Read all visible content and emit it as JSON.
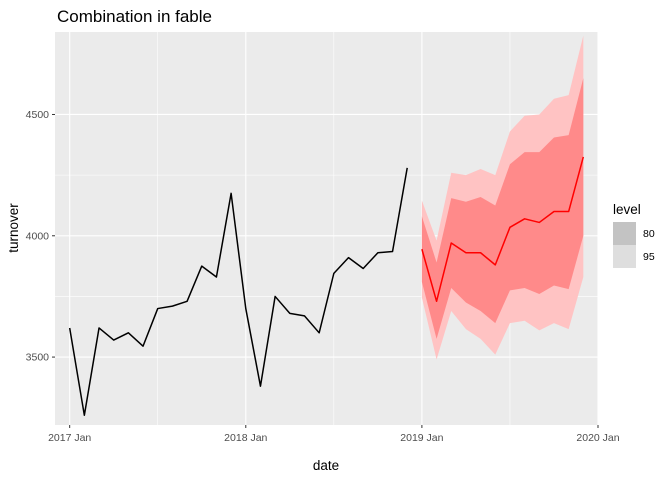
{
  "chart_data": {
    "type": "line",
    "title": "Combination in fable",
    "xlabel": "date",
    "ylabel": "turnover",
    "x_ticks": [
      "2017 Jan",
      "2018 Jan",
      "2019 Jan",
      "2020 Jan"
    ],
    "y_ticks": [
      3500,
      4000,
      4500
    ],
    "ylim": [
      3220,
      4840
    ],
    "xlim": [
      "2016-12",
      "2020-01"
    ],
    "grid": true,
    "legend": {
      "title": "level",
      "placement": "right",
      "entries": [
        {
          "label": "80",
          "color": "#c3c3c3"
        },
        {
          "label": "95",
          "color": "#dedede"
        }
      ]
    },
    "colors": {
      "history": "#000000",
      "forecast": "#ff0000",
      "band80": "#ff8a8a",
      "band95": "#ffc3c3",
      "panel": "#ebebeb",
      "grid": "#ffffff"
    },
    "history": {
      "x": [
        "2017-01",
        "2017-02",
        "2017-03",
        "2017-04",
        "2017-05",
        "2017-06",
        "2017-07",
        "2017-08",
        "2017-09",
        "2017-10",
        "2017-11",
        "2017-12",
        "2018-01",
        "2018-02",
        "2018-03",
        "2018-04",
        "2018-05",
        "2018-06",
        "2018-07",
        "2018-08",
        "2018-09",
        "2018-10",
        "2018-11",
        "2018-12"
      ],
      "y": [
        3620,
        3260,
        3620,
        3570,
        3600,
        3545,
        3700,
        3710,
        3730,
        3875,
        3830,
        4175,
        3700,
        3380,
        3750,
        3680,
        3670,
        3600,
        3845,
        3910,
        3865,
        3930,
        3935,
        4280
      ]
    },
    "forecast": {
      "x": [
        "2019-01",
        "2019-02",
        "2019-03",
        "2019-04",
        "2019-05",
        "2019-06",
        "2019-07",
        "2019-08",
        "2019-09",
        "2019-10",
        "2019-11",
        "2019-12"
      ],
      "y": [
        3945,
        3730,
        3970,
        3930,
        3930,
        3880,
        4035,
        4070,
        4055,
        4100,
        4100,
        4325
      ],
      "lo80": [
        3810,
        3575,
        3785,
        3725,
        3690,
        3640,
        3775,
        3785,
        3760,
        3795,
        3780,
        4000
      ],
      "hi80": [
        4080,
        3890,
        4155,
        4140,
        4160,
        4125,
        4295,
        4345,
        4345,
        4405,
        4415,
        4650
      ],
      "lo95": [
        3745,
        3490,
        3690,
        3615,
        3575,
        3510,
        3640,
        3650,
        3610,
        3640,
        3615,
        3830
      ],
      "hi95": [
        4145,
        3980,
        4260,
        4250,
        4275,
        4250,
        4430,
        4495,
        4500,
        4565,
        4580,
        4825
      ]
    }
  }
}
